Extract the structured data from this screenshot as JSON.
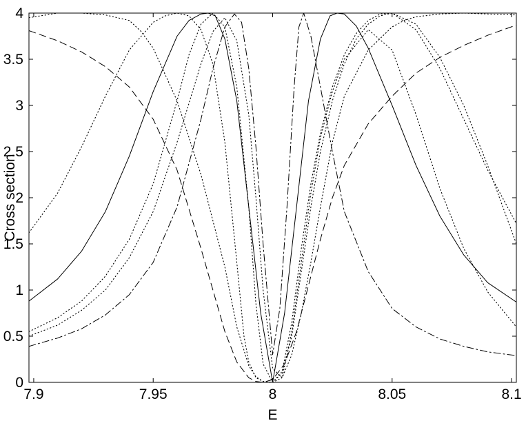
{
  "chart_data": {
    "type": "line",
    "title": "",
    "xlabel": "E",
    "ylabel": "Cross section",
    "xlim": [
      7.898,
      8.102
    ],
    "ylim": [
      0,
      4
    ],
    "xticks": [
      7.9,
      7.95,
      8,
      8.05,
      8.1
    ],
    "xtick_labels": [
      "7.9",
      "7.95",
      "8",
      "8.05",
      "8.1"
    ],
    "yticks": [
      0,
      0.5,
      1,
      1.5,
      2,
      2.5,
      3,
      3.5,
      4
    ],
    "ytick_labels": [
      "0",
      "0.5",
      "1",
      "1.5",
      "2",
      "2.5",
      "3",
      "3.5",
      "4"
    ],
    "grid": false,
    "legend": "none",
    "series": [
      {
        "style": "solid",
        "color": "#000000",
        "x": [
          7.898,
          7.91,
          7.92,
          7.93,
          7.94,
          7.95,
          7.96,
          7.965,
          7.97,
          7.973,
          7.976,
          7.98,
          7.985,
          7.99,
          7.995,
          8.0,
          8.005,
          8.01,
          8.015,
          8.02,
          8.024,
          8.027,
          8.03,
          8.035,
          8.04,
          8.05,
          8.06,
          8.07,
          8.08,
          8.09,
          8.102
        ],
        "y": [
          0.88,
          1.12,
          1.42,
          1.85,
          2.45,
          3.15,
          3.75,
          3.92,
          3.99,
          4.0,
          3.97,
          3.72,
          3.05,
          1.9,
          0.75,
          0.0,
          0.75,
          1.9,
          3.05,
          3.72,
          3.97,
          4.0,
          3.99,
          3.86,
          3.62,
          3.0,
          2.35,
          1.8,
          1.38,
          1.08,
          0.87
        ]
      },
      {
        "style": "dashed",
        "color": "#000000",
        "x": [
          7.898,
          7.91,
          7.92,
          7.93,
          7.94,
          7.95,
          7.96,
          7.97,
          7.975,
          7.98,
          7.985,
          7.99,
          7.993,
          7.996,
          8.0,
          8.005,
          8.01,
          8.015,
          8.02,
          8.025,
          8.03,
          8.04,
          8.05,
          8.06,
          8.07,
          8.08,
          8.09,
          8.102
        ],
        "y": [
          3.81,
          3.7,
          3.58,
          3.42,
          3.2,
          2.85,
          2.3,
          1.45,
          1.0,
          0.55,
          0.22,
          0.05,
          0.01,
          0.0,
          0.03,
          0.2,
          0.55,
          1.05,
          1.55,
          2.0,
          2.35,
          2.8,
          3.1,
          3.35,
          3.52,
          3.65,
          3.76,
          3.87
        ]
      },
      {
        "style": "dashdot",
        "color": "#000000",
        "x": [
          7.898,
          7.91,
          7.92,
          7.93,
          7.94,
          7.95,
          7.96,
          7.97,
          7.975,
          7.98,
          7.984,
          7.987,
          7.99,
          7.993,
          7.996,
          8.0,
          8.003,
          8.006,
          8.009,
          8.011,
          8.013,
          8.016,
          8.02,
          8.025,
          8.03,
          8.04,
          8.05,
          8.06,
          8.07,
          8.08,
          8.09,
          8.102
        ],
        "y": [
          0.39,
          0.48,
          0.58,
          0.73,
          0.95,
          1.3,
          1.9,
          2.85,
          3.4,
          3.85,
          3.99,
          3.9,
          3.4,
          2.55,
          1.5,
          0.3,
          0.8,
          1.9,
          3.2,
          3.85,
          4.0,
          3.75,
          3.2,
          2.5,
          1.85,
          1.2,
          0.8,
          0.6,
          0.47,
          0.39,
          0.33,
          0.29
        ]
      },
      {
        "style": "dotted",
        "color": "#000000",
        "x": [
          7.898,
          7.91,
          7.92,
          7.93,
          7.94,
          7.95,
          7.955,
          7.96,
          7.965,
          7.97,
          7.975,
          7.98,
          7.985,
          7.988,
          7.99,
          7.993,
          7.996,
          8.0,
          8.004,
          8.008,
          8.012,
          8.016,
          8.02,
          8.025,
          8.03,
          8.035,
          8.04,
          8.045,
          8.05,
          8.06,
          8.07,
          8.08,
          8.09,
          8.102
        ],
        "y": [
          1.62,
          2.05,
          2.55,
          3.1,
          3.6,
          3.9,
          3.97,
          4.0,
          3.97,
          3.82,
          3.45,
          2.6,
          1.3,
          0.5,
          0.22,
          0.05,
          0.01,
          0.0,
          0.1,
          0.5,
          1.2,
          1.9,
          2.5,
          3.05,
          3.45,
          3.72,
          3.88,
          3.97,
          4.0,
          3.82,
          3.4,
          2.85,
          2.3,
          1.72
        ]
      },
      {
        "style": "dotted",
        "color": "#000000",
        "x": [
          7.898,
          7.91,
          7.92,
          7.93,
          7.94,
          7.95,
          7.96,
          7.965,
          7.97,
          7.975,
          7.98,
          7.985,
          7.99,
          7.993,
          7.996,
          8.0,
          8.004,
          8.008,
          8.012,
          8.016,
          8.02,
          8.025,
          8.03,
          8.035,
          8.04,
          8.045,
          8.05,
          8.06,
          8.07,
          8.08,
          8.09,
          8.102
        ],
        "y": [
          0.55,
          0.7,
          0.88,
          1.15,
          1.55,
          2.15,
          3.05,
          3.55,
          3.88,
          4.0,
          3.85,
          3.2,
          1.9,
          0.85,
          0.2,
          0.0,
          0.12,
          0.65,
          1.45,
          2.15,
          2.7,
          3.2,
          3.55,
          3.78,
          3.92,
          3.99,
          4.0,
          3.88,
          3.52,
          3.0,
          2.35,
          1.5
        ]
      },
      {
        "style": "dotted",
        "color": "#000000",
        "x": [
          7.898,
          7.91,
          7.92,
          7.93,
          7.94,
          7.945,
          7.95,
          7.96,
          7.97,
          7.98,
          7.985,
          7.99,
          7.993,
          7.996,
          8.0,
          8.004,
          8.008,
          8.012,
          8.016,
          8.02,
          8.025,
          8.03,
          8.04,
          8.05,
          8.055,
          8.06,
          8.07,
          8.08,
          8.09,
          8.102
        ],
        "y": [
          3.95,
          4.0,
          4.0,
          3.98,
          3.92,
          3.8,
          3.62,
          3.05,
          2.25,
          1.25,
          0.6,
          0.18,
          0.06,
          0.01,
          0.0,
          0.05,
          0.3,
          0.75,
          1.3,
          1.9,
          2.6,
          3.1,
          3.6,
          3.85,
          3.92,
          3.96,
          3.99,
          4.0,
          3.99,
          3.98
        ]
      },
      {
        "style": "dotted",
        "color": "#000000",
        "x": [
          7.898,
          7.91,
          7.92,
          7.93,
          7.94,
          7.95,
          7.96,
          7.97,
          7.975,
          7.98,
          7.985,
          7.99,
          7.993,
          7.996,
          8.0,
          8.004,
          8.008,
          8.012,
          8.016,
          8.02,
          8.025,
          8.03,
          8.04,
          8.05,
          8.06,
          8.07,
          8.08,
          8.09,
          8.102
        ],
        "y": [
          0.5,
          0.62,
          0.78,
          1.0,
          1.35,
          1.85,
          2.6,
          3.45,
          3.8,
          3.95,
          3.7,
          2.9,
          2.0,
          1.0,
          0.15,
          0.05,
          0.55,
          1.3,
          2.05,
          2.65,
          3.15,
          3.5,
          3.82,
          3.6,
          2.9,
          2.1,
          1.45,
          0.98,
          0.6
        ]
      }
    ]
  }
}
